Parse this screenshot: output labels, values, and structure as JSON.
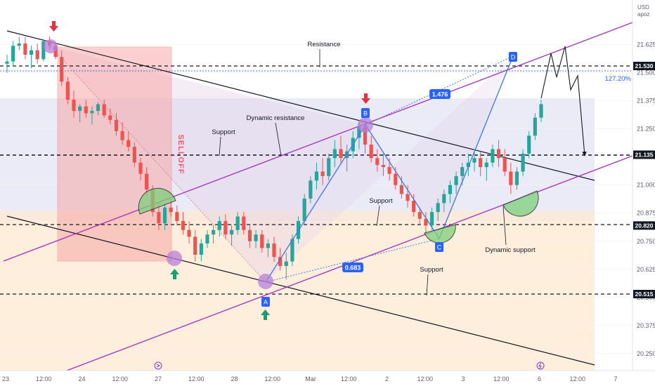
{
  "chart_data": {
    "type": "candlestick",
    "currency": "USD",
    "currency_sub": "apoz",
    "y_ticks": [
      "21.625",
      "21.500",
      "21.375",
      "21.250",
      "21.125",
      "21.000",
      "20.875",
      "20.750",
      "20.625",
      "20.500",
      "20.375",
      "20.250"
    ],
    "x_ticks": [
      "23",
      "12:00",
      "24",
      "12:00",
      "27",
      "12:00",
      "28",
      "12:00",
      "Mar",
      "12:00",
      "2",
      "12:00",
      "3",
      "12:00",
      "6",
      "12:00",
      "7"
    ],
    "ylim": [
      20.2,
      21.75
    ],
    "price_tags": [
      {
        "label": "21.530",
        "value": 21.53
      },
      {
        "label": "21.135",
        "value": 21.135
      },
      {
        "label": "20.820",
        "value": 20.82
      },
      {
        "label": "20.515",
        "value": 20.515
      }
    ],
    "fib_label": "127.20%",
    "pattern_points": {
      "A": "A",
      "B": "B",
      "C": "C",
      "D": "D"
    },
    "ratios": {
      "BD": "1.476",
      "AC": "0.683"
    },
    "annotations": {
      "resistance": "Resistance",
      "support_left": "Support",
      "dynamic_resistance": "Dynamic resistance",
      "support_mid": "Support",
      "support_low": "Support",
      "dynamic_support": "Dynamic support",
      "selloff": "SELLOFF"
    },
    "candles": [
      [
        21.54,
        21.58,
        21.5,
        21.55
      ],
      [
        21.55,
        21.64,
        21.53,
        21.62
      ],
      [
        21.62,
        21.66,
        21.6,
        21.63
      ],
      [
        21.63,
        21.66,
        21.56,
        21.58
      ],
      [
        21.58,
        21.62,
        21.52,
        21.6
      ],
      [
        21.6,
        21.63,
        21.54,
        21.56
      ],
      [
        21.56,
        21.65,
        21.55,
        21.64
      ],
      [
        21.64,
        21.66,
        21.6,
        21.62
      ],
      [
        21.62,
        21.63,
        21.56,
        21.57
      ],
      [
        21.57,
        21.6,
        21.44,
        21.46
      ],
      [
        21.46,
        21.48,
        21.36,
        21.38
      ],
      [
        21.38,
        21.42,
        21.3,
        21.33
      ],
      [
        21.33,
        21.36,
        21.28,
        21.35
      ],
      [
        21.35,
        21.38,
        21.3,
        21.32
      ],
      [
        21.32,
        21.35,
        21.27,
        21.33
      ],
      [
        21.33,
        21.37,
        21.31,
        21.36
      ],
      [
        21.36,
        21.38,
        21.3,
        21.31
      ],
      [
        21.31,
        21.34,
        21.27,
        21.29
      ],
      [
        21.29,
        21.32,
        21.22,
        21.24
      ],
      [
        21.24,
        21.28,
        21.18,
        21.2
      ],
      [
        21.2,
        21.24,
        21.15,
        21.17
      ],
      [
        21.17,
        21.19,
        21.08,
        21.1
      ],
      [
        21.1,
        21.12,
        21.02,
        21.05
      ],
      [
        21.05,
        21.08,
        20.95,
        20.98
      ],
      [
        20.98,
        21.0,
        20.86,
        20.88
      ],
      [
        20.88,
        20.92,
        20.8,
        20.83
      ],
      [
        20.83,
        20.92,
        20.8,
        20.9
      ],
      [
        20.9,
        20.94,
        20.86,
        20.88
      ],
      [
        20.88,
        20.91,
        20.82,
        20.84
      ],
      [
        20.84,
        20.88,
        20.78,
        20.8
      ],
      [
        20.8,
        20.84,
        20.74,
        20.77
      ],
      [
        20.77,
        20.8,
        20.66,
        20.69
      ],
      [
        20.69,
        20.76,
        20.66,
        20.74
      ],
      [
        20.74,
        20.8,
        20.72,
        20.78
      ],
      [
        20.78,
        20.82,
        20.74,
        20.8
      ],
      [
        20.8,
        20.86,
        20.77,
        20.84
      ],
      [
        20.84,
        20.87,
        20.76,
        20.78
      ],
      [
        20.78,
        20.82,
        20.73,
        20.8
      ],
      [
        20.8,
        20.88,
        20.78,
        20.86
      ],
      [
        20.86,
        20.88,
        20.78,
        20.8
      ],
      [
        20.8,
        20.82,
        20.72,
        20.75
      ],
      [
        20.75,
        20.8,
        20.72,
        20.78
      ],
      [
        20.78,
        20.8,
        20.7,
        20.72
      ],
      [
        20.72,
        20.76,
        20.68,
        20.74
      ],
      [
        20.74,
        20.77,
        20.66,
        20.68
      ],
      [
        20.68,
        20.72,
        20.62,
        20.64
      ],
      [
        20.64,
        20.7,
        20.58,
        20.66
      ],
      [
        20.66,
        20.78,
        20.64,
        20.76
      ],
      [
        20.76,
        20.86,
        20.74,
        20.84
      ],
      [
        20.84,
        20.96,
        20.82,
        20.94
      ],
      [
        20.94,
        21.04,
        20.92,
        21.02
      ],
      [
        21.02,
        21.1,
        20.98,
        21.06
      ],
      [
        21.06,
        21.12,
        21.0,
        21.04
      ],
      [
        21.04,
        21.14,
        21.02,
        21.12
      ],
      [
        21.12,
        21.2,
        21.08,
        21.16
      ],
      [
        21.16,
        21.22,
        21.1,
        21.12
      ],
      [
        21.12,
        21.18,
        21.06,
        21.15
      ],
      [
        21.15,
        21.24,
        21.12,
        21.21
      ],
      [
        21.21,
        21.28,
        21.16,
        21.26
      ],
      [
        21.26,
        21.3,
        21.14,
        21.18
      ],
      [
        21.18,
        21.22,
        21.1,
        21.12
      ],
      [
        21.12,
        21.16,
        21.06,
        21.09
      ],
      [
        21.09,
        21.14,
        21.04,
        21.08
      ],
      [
        21.08,
        21.12,
        21.02,
        21.05
      ],
      [
        21.05,
        21.08,
        20.98,
        21.0
      ],
      [
        21.0,
        21.04,
        20.94,
        20.96
      ],
      [
        20.96,
        21.0,
        20.9,
        20.93
      ],
      [
        20.93,
        20.96,
        20.86,
        20.88
      ],
      [
        20.88,
        20.9,
        20.82,
        20.85
      ],
      [
        20.85,
        20.88,
        20.79,
        20.82
      ],
      [
        20.82,
        20.9,
        20.8,
        20.88
      ],
      [
        20.88,
        20.94,
        20.84,
        20.92
      ],
      [
        20.92,
        20.98,
        20.88,
        20.96
      ],
      [
        20.96,
        21.02,
        20.92,
        21.0
      ],
      [
        21.0,
        21.06,
        20.96,
        21.04
      ],
      [
        21.04,
        21.1,
        21.0,
        21.08
      ],
      [
        21.08,
        21.14,
        21.04,
        21.1
      ],
      [
        21.1,
        21.16,
        21.06,
        21.12
      ],
      [
        21.12,
        21.15,
        21.04,
        21.08
      ],
      [
        21.08,
        21.12,
        21.02,
        21.1
      ],
      [
        21.1,
        21.18,
        21.08,
        21.16
      ],
      [
        21.16,
        21.2,
        21.08,
        21.12
      ],
      [
        21.12,
        21.16,
        21.04,
        21.06
      ],
      [
        21.06,
        21.1,
        20.96,
        21.0
      ],
      [
        21.0,
        21.08,
        20.98,
        21.06
      ],
      [
        21.06,
        21.16,
        21.04,
        21.14
      ],
      [
        21.14,
        21.24,
        21.12,
        21.22
      ],
      [
        21.22,
        21.32,
        21.2,
        21.3
      ],
      [
        21.3,
        21.38,
        21.28,
        21.36
      ]
    ]
  }
}
